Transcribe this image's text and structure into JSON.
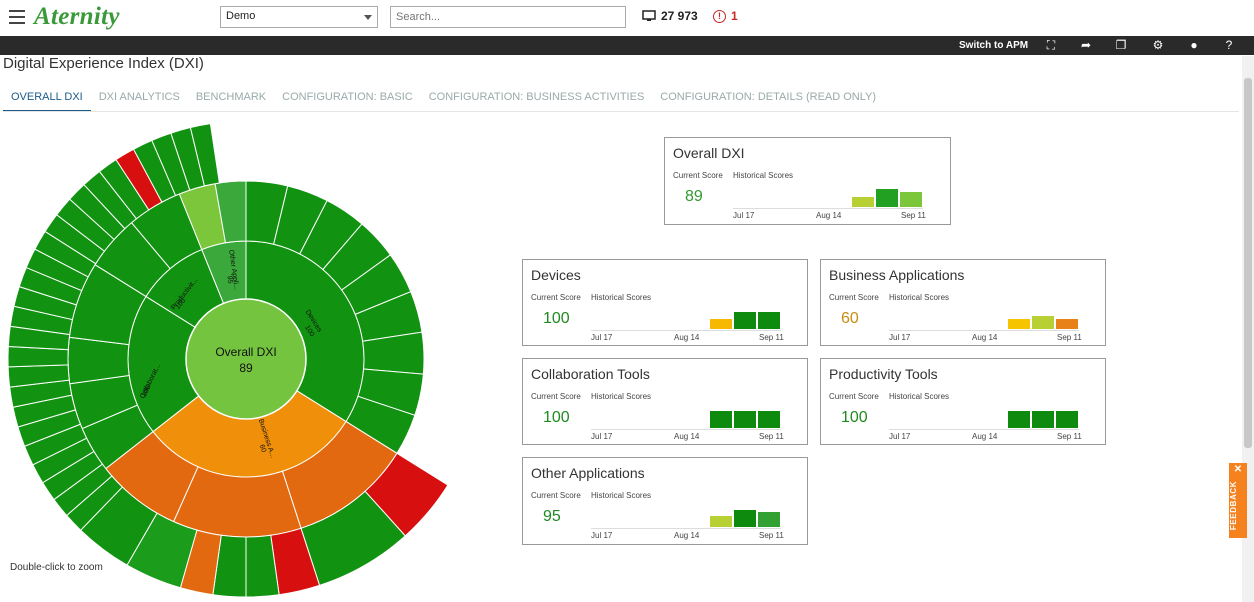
{
  "app": {
    "logo": "Aternity"
  },
  "topbar": {
    "selected_filter": "Demo",
    "search_placeholder": "Search...",
    "device_count": "27 973",
    "alert_count": "1"
  },
  "toolbar": {
    "switch_label": "Switch to APM"
  },
  "page": {
    "title": "Digital Experience Index (DXI)"
  },
  "tabs": [
    {
      "label": "OVERALL DXI",
      "active": true
    },
    {
      "label": "DXI ANALYTICS"
    },
    {
      "label": "BENCHMARK"
    },
    {
      "label": "CONFIGURATION: BASIC"
    },
    {
      "label": "CONFIGURATION: BUSINESS ACTIVITIES"
    },
    {
      "label": "CONFIGURATION: DETAILS (READ ONLY)"
    }
  ],
  "sunburst": {
    "center_label": "Overall DXI",
    "center_score": "89",
    "hint": "Double-click to zoom",
    "segments": [
      {
        "label": "Devices",
        "score": "100"
      },
      {
        "label": "Business A...",
        "score": "60"
      },
      {
        "label": "Collaborat...",
        "score": "100"
      },
      {
        "label": "Productivit...",
        "score": "100"
      },
      {
        "label": "Other Appli...",
        "score": "95"
      }
    ]
  },
  "cards_labels": {
    "current": "Current Score",
    "historical": "Historical Scores",
    "dates": [
      "Jul 17",
      "Aug 14",
      "Sep 11"
    ]
  },
  "cards": [
    {
      "title": "Overall DXI",
      "score": "89",
      "score_color": "#2e9a2e",
      "bars": [
        "#b8d034",
        "#22a022",
        "#7cc63c"
      ],
      "bar_levels": [
        0.55,
        0.9,
        0.75
      ]
    },
    {
      "title": "Devices",
      "score": "100",
      "score_color": "#1f8a1f",
      "bars": [
        "#f6b800",
        "#0e8a0e",
        "#0e8a0e"
      ],
      "bar_levels": [
        0.55,
        0.85,
        0.85
      ]
    },
    {
      "title": "Business Applications",
      "score": "60",
      "score_color": "#c78c10",
      "bars": [
        "#f6c400",
        "#b8d034",
        "#e88218"
      ],
      "bar_levels": [
        0.55,
        0.7,
        0.55
      ]
    },
    {
      "title": "Collaboration Tools",
      "score": "100",
      "score_color": "#1f8a1f",
      "bars": [
        "#0e8a0e",
        "#0e8a0e",
        "#0e8a0e"
      ],
      "bar_levels": [
        0.85,
        0.85,
        0.85
      ]
    },
    {
      "title": "Productivity Tools",
      "score": "100",
      "score_color": "#1f8a1f",
      "bars": [
        "#0e8a0e",
        "#0e8a0e",
        "#0e8a0e"
      ],
      "bar_levels": [
        0.85,
        0.85,
        0.85
      ]
    },
    {
      "title": "Other Applications",
      "score": "95",
      "score_color": "#1f8a1f",
      "bars": [
        "#b8d034",
        "#0e8a0e",
        "#33a033"
      ],
      "bar_levels": [
        0.6,
        0.85,
        0.75
      ]
    }
  ],
  "feedback": {
    "label": "FEEDBACK",
    "close": "✕"
  }
}
